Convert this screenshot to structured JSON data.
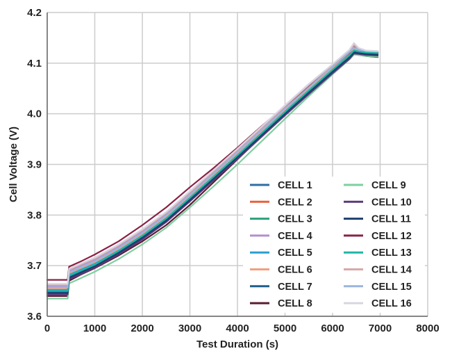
{
  "chart_data": {
    "type": "line",
    "title": "",
    "xlabel": "Test Duration (s)",
    "ylabel": "Cell Voltage (V)",
    "xlim": [
      0,
      8000
    ],
    "ylim": [
      3.6,
      4.2
    ],
    "x_ticks": [
      0,
      1000,
      2000,
      3000,
      4000,
      5000,
      6000,
      7000,
      8000
    ],
    "y_ticks": [
      3.6,
      3.7,
      3.8,
      3.9,
      4.0,
      4.1,
      4.2
    ],
    "x_tick_labels": [
      "0",
      "1000",
      "2000",
      "3000",
      "4000",
      "5000",
      "6000",
      "7000",
      "8000"
    ],
    "y_tick_labels": [
      "3.6",
      "3.7",
      "3.8",
      "3.9",
      "4.0",
      "4.1",
      "4.2"
    ],
    "grid": true,
    "legend_position": "bottom-right",
    "base_x": [
      0,
      430,
      460,
      700,
      1000,
      1500,
      2000,
      2500,
      3000,
      3500,
      4000,
      4500,
      5000,
      5500,
      6000,
      6350,
      6450,
      6550,
      6700,
      6950
    ],
    "series": [
      {
        "name": "CELL 1",
        "color": "#2e6da4",
        "y": [
          3.65,
          3.65,
          3.68,
          3.69,
          3.702,
          3.728,
          3.758,
          3.792,
          3.833,
          3.875,
          3.917,
          3.96,
          4.003,
          4.045,
          4.086,
          4.114,
          4.124,
          4.123,
          4.121,
          4.12
        ]
      },
      {
        "name": "CELL 2",
        "color": "#e8603c",
        "y": [
          3.652,
          3.652,
          3.682,
          3.692,
          3.704,
          3.73,
          3.76,
          3.794,
          3.835,
          3.877,
          3.919,
          3.962,
          4.005,
          4.047,
          4.088,
          4.116,
          4.126,
          4.124,
          4.122,
          4.121
        ]
      },
      {
        "name": "CELL 3",
        "color": "#2ca07a",
        "y": [
          3.645,
          3.645,
          3.675,
          3.685,
          3.698,
          3.724,
          3.754,
          3.788,
          3.829,
          3.871,
          3.913,
          3.956,
          3.999,
          4.041,
          4.082,
          4.11,
          4.12,
          4.119,
          4.117,
          4.116
        ]
      },
      {
        "name": "CELL 4",
        "color": "#b08fcf",
        "y": [
          3.66,
          3.66,
          3.69,
          3.7,
          3.712,
          3.738,
          3.768,
          3.802,
          3.843,
          3.885,
          3.927,
          3.97,
          4.013,
          4.055,
          4.094,
          4.122,
          4.133,
          4.127,
          4.123,
          4.122
        ]
      },
      {
        "name": "CELL 5",
        "color": "#2a9fcf",
        "y": [
          3.652,
          3.652,
          3.682,
          3.692,
          3.704,
          3.731,
          3.761,
          3.795,
          3.836,
          3.878,
          3.92,
          3.962,
          4.005,
          4.047,
          4.088,
          4.116,
          4.126,
          4.124,
          4.122,
          4.121
        ]
      },
      {
        "name": "CELL 6",
        "color": "#f0a080",
        "y": [
          3.655,
          3.655,
          3.685,
          3.695,
          3.707,
          3.733,
          3.763,
          3.797,
          3.838,
          3.88,
          3.922,
          3.965,
          4.008,
          4.05,
          4.091,
          4.119,
          4.129,
          4.125,
          4.123,
          4.122
        ]
      },
      {
        "name": "CELL 7",
        "color": "#1f5f8b",
        "y": [
          3.648,
          3.648,
          3.678,
          3.688,
          3.7,
          3.726,
          3.756,
          3.79,
          3.831,
          3.873,
          3.915,
          3.958,
          4.001,
          4.043,
          4.084,
          4.112,
          4.122,
          4.121,
          4.119,
          4.118
        ]
      },
      {
        "name": "CELL 8",
        "color": "#5a1a32",
        "y": [
          3.64,
          3.64,
          3.67,
          3.682,
          3.695,
          3.72,
          3.748,
          3.78,
          3.82,
          3.865,
          3.91,
          3.955,
          3.998,
          4.04,
          4.081,
          4.11,
          4.118,
          4.116,
          4.114,
          4.112
        ]
      },
      {
        "name": "CELL 9",
        "color": "#7fcfa0",
        "y": [
          3.635,
          3.635,
          3.665,
          3.675,
          3.688,
          3.713,
          3.742,
          3.775,
          3.815,
          3.857,
          3.9,
          3.945,
          3.99,
          4.035,
          4.078,
          4.107,
          4.117,
          4.116,
          4.114,
          4.113
        ]
      },
      {
        "name": "CELL 10",
        "color": "#5a3a7a",
        "y": [
          3.643,
          3.643,
          3.673,
          3.683,
          3.696,
          3.722,
          3.752,
          3.786,
          3.827,
          3.869,
          3.911,
          3.954,
          3.997,
          4.039,
          4.08,
          4.108,
          4.119,
          4.118,
          4.116,
          4.115
        ]
      },
      {
        "name": "CELL 11",
        "color": "#1c3f6e",
        "y": [
          3.646,
          3.646,
          3.676,
          3.686,
          3.699,
          3.725,
          3.755,
          3.789,
          3.83,
          3.872,
          3.914,
          3.957,
          4.0,
          4.042,
          4.083,
          4.111,
          4.121,
          4.12,
          4.118,
          4.117
        ]
      },
      {
        "name": "CELL 12",
        "color": "#8a2045",
        "y": [
          3.672,
          3.672,
          3.698,
          3.708,
          3.722,
          3.748,
          3.78,
          3.815,
          3.855,
          3.893,
          3.933,
          3.975,
          4.015,
          4.055,
          4.093,
          4.12,
          4.132,
          4.126,
          4.124,
          4.122
        ]
      },
      {
        "name": "CELL 13",
        "color": "#1fb5a5",
        "y": [
          3.65,
          3.65,
          3.68,
          3.69,
          3.702,
          3.729,
          3.759,
          3.793,
          3.834,
          3.876,
          3.918,
          3.961,
          4.004,
          4.046,
          4.087,
          4.115,
          4.125,
          4.123,
          4.121,
          4.12
        ]
      },
      {
        "name": "CELL 14",
        "color": "#d8a8a8",
        "y": [
          3.662,
          3.662,
          3.692,
          3.702,
          3.714,
          3.74,
          3.77,
          3.804,
          3.845,
          3.887,
          3.929,
          3.972,
          4.015,
          4.057,
          4.096,
          4.124,
          4.136,
          4.128,
          4.124,
          4.123
        ]
      },
      {
        "name": "CELL 15",
        "color": "#9ab5dd",
        "y": [
          3.657,
          3.657,
          3.687,
          3.697,
          3.709,
          3.735,
          3.765,
          3.799,
          3.84,
          3.882,
          3.924,
          3.967,
          4.01,
          4.052,
          4.093,
          4.121,
          4.131,
          4.126,
          4.124,
          4.123
        ]
      },
      {
        "name": "CELL 16",
        "color": "#d6d6e2",
        "y": [
          3.664,
          3.664,
          3.694,
          3.704,
          3.716,
          3.742,
          3.772,
          3.806,
          3.847,
          3.889,
          3.931,
          3.974,
          4.017,
          4.059,
          4.098,
          4.126,
          4.14,
          4.13,
          4.125,
          4.124
        ]
      }
    ]
  }
}
